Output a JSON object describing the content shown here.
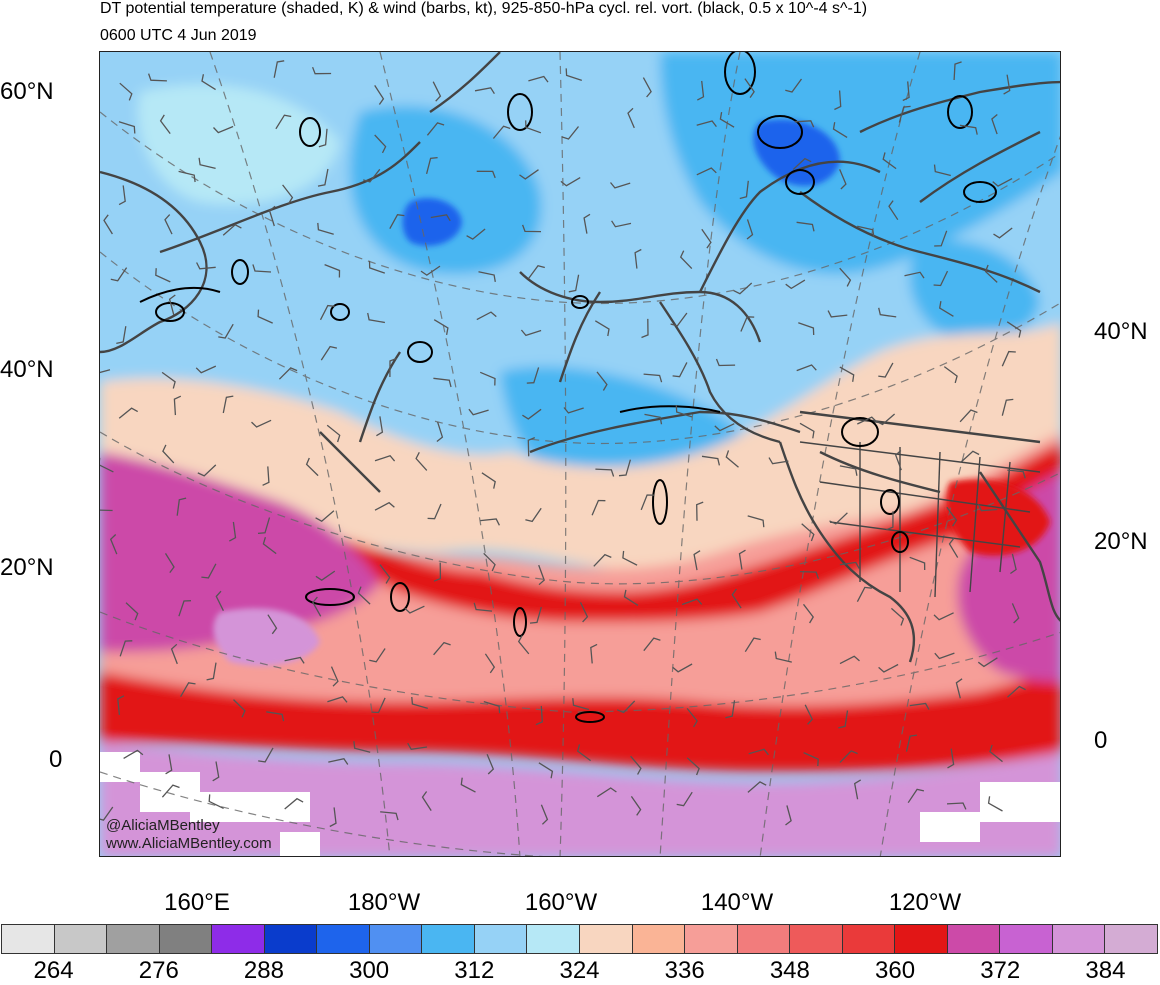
{
  "title_line1": "DT potential temperature (shaded, K) & wind (barbs, kt), 925-850-hPa cycl. rel. vort. (black, 0.5 x 10^-4 s^-1)",
  "title_line2": "0600 UTC 4 Jun 2019",
  "lat_labels_left": [
    "60°N",
    "40°N",
    "20°N",
    "0"
  ],
  "lat_labels_right": [
    "40°N",
    "20°N",
    "0"
  ],
  "lon_labels": [
    "160°E",
    "180°W",
    "160°W",
    "140°W",
    "120°W"
  ],
  "credit": [
    "@AliciaMBentley",
    "www.AliciaMBentley.com"
  ],
  "colorbar": {
    "colors": [
      "#e6e6e6",
      "#c8c8c8",
      "#a0a0a0",
      "#808080",
      "#8e2ce8",
      "#0a3ccc",
      "#1e64ec",
      "#5090f2",
      "#4ab6f2",
      "#96d2f6",
      "#b6e8f6",
      "#f8d6c0",
      "#fab496",
      "#f69e98",
      "#f27c7c",
      "#ee5a5a",
      "#ea3a3a",
      "#e21616",
      "#cc4aa8",
      "#c862d2",
      "#d494d8",
      "#d4acd4"
    ],
    "labels": [
      "264",
      "276",
      "288",
      "300",
      "312",
      "324",
      "336",
      "348",
      "360",
      "372",
      "384"
    ]
  },
  "map_colors": {
    "cold_blue": "#4ab6f2",
    "mid_blue": "#96d2f6",
    "light_blue": "#b6e8f6",
    "dark_blue": "#1e64ec",
    "peach": "#f8d6c0",
    "salmon": "#f69e98",
    "red": "#e21616",
    "purple": "#cc4aa8",
    "lavender": "#d494d8"
  }
}
